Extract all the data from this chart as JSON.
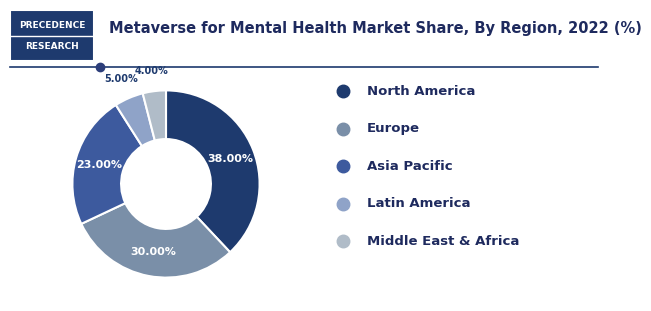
{
  "title": "Metaverse for Mental Health Market Share, By Region, 2022 (%)",
  "labels": [
    "North America",
    "Europe",
    "Asia Pacific",
    "Latin America",
    "Middle East & Africa"
  ],
  "values": [
    38.0,
    30.0,
    23.0,
    5.0,
    4.0
  ],
  "colors": [
    "#1e3a6e",
    "#7a8fa8",
    "#3d5a9e",
    "#8fa3c8",
    "#b0bcc8"
  ],
  "pct_labels": [
    "38.00%",
    "30.00%",
    "23.00%",
    "5.00%",
    "4.00%"
  ],
  "background_color": "#ffffff",
  "title_fontsize": 10.5,
  "legend_fontsize": 9.5,
  "logo_text_line1": "PRECEDENCE",
  "logo_text_line2": "RESEARCH",
  "logo_bg": "#1e3a6e",
  "logo_border": "#1e3a6e",
  "header_line_color": "#1e3a6e",
  "dot_color": "#2c3e7a"
}
